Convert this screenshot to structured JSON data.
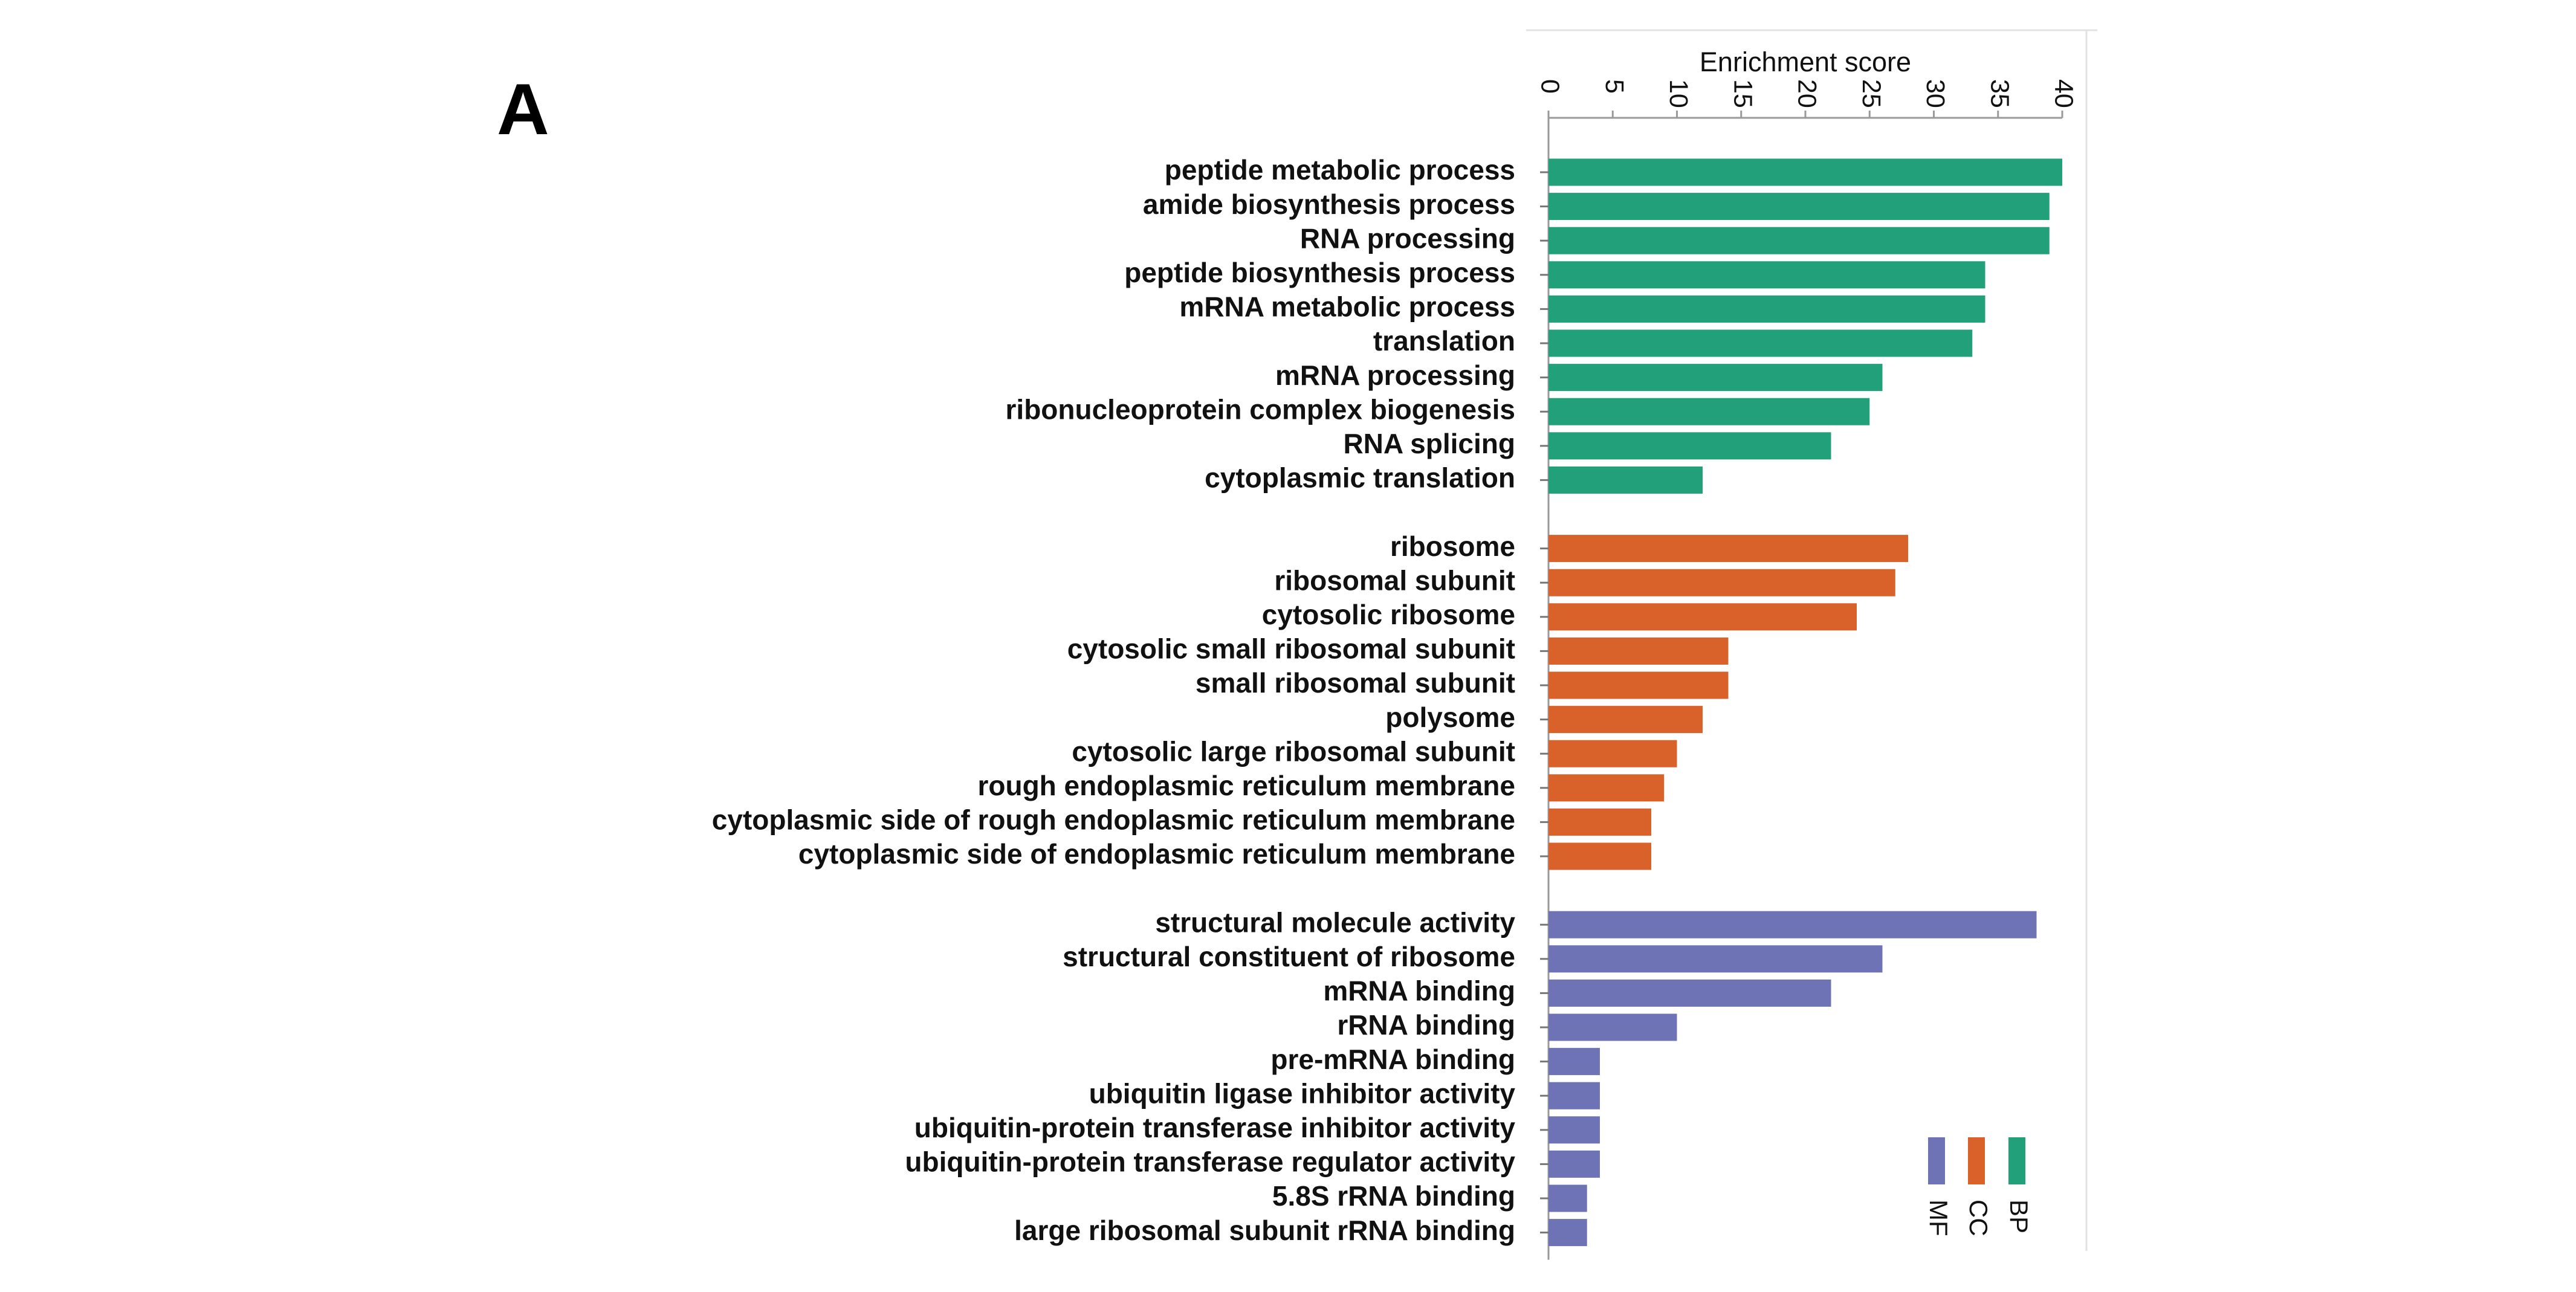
{
  "panel_label": "A",
  "chart_data": {
    "type": "bar",
    "orientation": "horizontal",
    "xlabel": "Enrichment score",
    "xlim": [
      0,
      40
    ],
    "xticks": [
      0,
      5,
      10,
      15,
      20,
      25,
      30,
      35,
      40
    ],
    "legend_position": "bottom-right",
    "colors": {
      "BP": "#22a07a",
      "CC": "#d9622a",
      "MF": "#6e73b5"
    },
    "legend": [
      {
        "key": "BP",
        "label": "BP"
      },
      {
        "key": "CC",
        "label": "CC"
      },
      {
        "key": "MF",
        "label": "MF"
      }
    ],
    "groups": [
      {
        "key": "BP",
        "items": [
          {
            "label": "peptide metabolic process",
            "value": 40
          },
          {
            "label": "amide biosynthesis process",
            "value": 39
          },
          {
            "label": "RNA processing",
            "value": 39
          },
          {
            "label": "peptide biosynthesis process",
            "value": 34
          },
          {
            "label": "mRNA metabolic process",
            "value": 34
          },
          {
            "label": "translation",
            "value": 33
          },
          {
            "label": "mRNA processing",
            "value": 26
          },
          {
            "label": "ribonucleoprotein complex biogenesis",
            "value": 25
          },
          {
            "label": "RNA splicing",
            "value": 22
          },
          {
            "label": "cytoplasmic translation",
            "value": 12
          }
        ]
      },
      {
        "key": "CC",
        "items": [
          {
            "label": "ribosome",
            "value": 28
          },
          {
            "label": "ribosomal subunit",
            "value": 27
          },
          {
            "label": "cytosolic ribosome",
            "value": 24
          },
          {
            "label": "cytosolic small ribosomal subunit",
            "value": 14
          },
          {
            "label": "small ribosomal subunit",
            "value": 14
          },
          {
            "label": "polysome",
            "value": 12
          },
          {
            "label": "cytosolic large ribosomal subunit",
            "value": 10
          },
          {
            "label": "rough endoplasmic reticulum membrane",
            "value": 9
          },
          {
            "label": "cytoplasmic side of rough endoplasmic reticulum membrane",
            "value": 8
          },
          {
            "label": "cytoplasmic side of endoplasmic reticulum membrane",
            "value": 8
          }
        ]
      },
      {
        "key": "MF",
        "items": [
          {
            "label": "structural molecule activity",
            "value": 38
          },
          {
            "label": "structural constituent of ribosome",
            "value": 26
          },
          {
            "label": "mRNA binding",
            "value": 22
          },
          {
            "label": "rRNA binding",
            "value": 10
          },
          {
            "label": "pre-mRNA binding",
            "value": 4
          },
          {
            "label": "ubiquitin ligase inhibitor activity",
            "value": 4
          },
          {
            "label": "ubiquitin-protein transferase inhibitor activity",
            "value": 4
          },
          {
            "label": "ubiquitin-protein transferase regulator activity",
            "value": 4
          },
          {
            "label": "5.8S rRNA binding",
            "value": 3
          },
          {
            "label": "large ribosomal subunit rRNA binding",
            "value": 3
          }
        ]
      }
    ]
  }
}
